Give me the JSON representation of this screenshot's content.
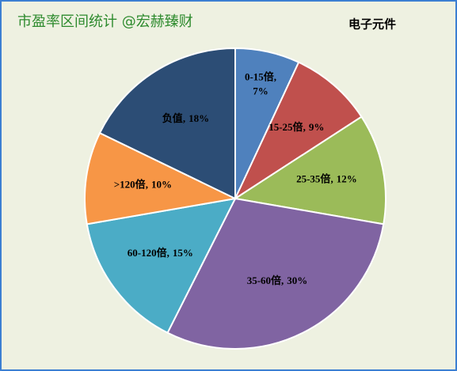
{
  "chart_data": {
    "type": "pie",
    "header": "市盈率区间统计 @宏赫臻财",
    "title": "电子元件",
    "categories": [
      "0-15倍",
      "15-25倍",
      "25-35倍",
      "35-60倍",
      "60-120倍",
      ">120倍",
      "负值"
    ],
    "values": [
      7,
      9,
      12,
      30,
      15,
      10,
      18
    ],
    "value_labels": [
      "7%",
      "9%",
      "12%",
      "30%",
      "15%",
      "10%",
      "18%"
    ],
    "colors": [
      "#4f81bd",
      "#c0504d",
      "#9bbb59",
      "#8064a2",
      "#4bacc6",
      "#f79646",
      "#2c4d75"
    ]
  }
}
